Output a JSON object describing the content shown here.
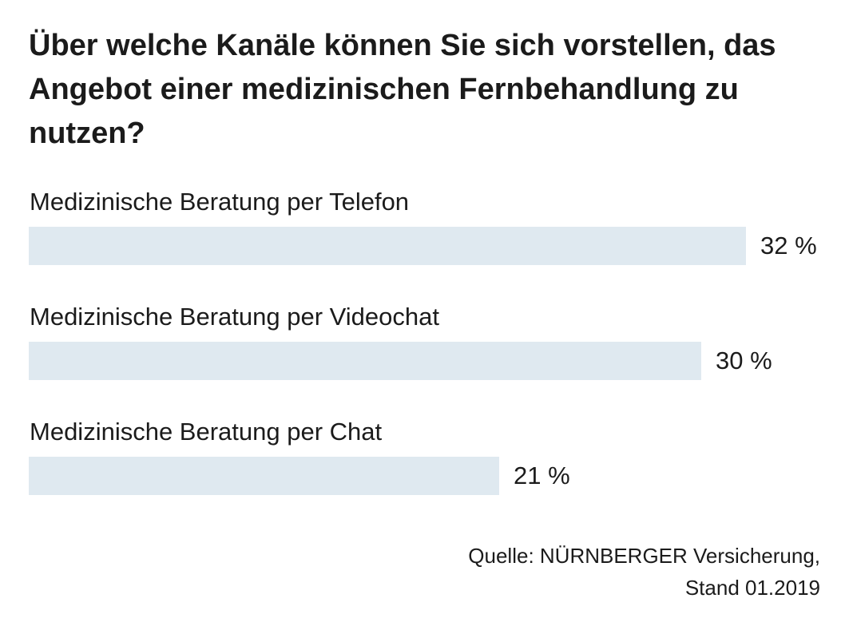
{
  "chart_data": {
    "type": "bar",
    "orientation": "horizontal",
    "title": "Über welche Kanäle können Sie sich vorstellen, das Angebot einer medizinischen Fernbehandlung zu nutzen?",
    "categories": [
      "Medizinische Beratung per Telefon",
      "Medizinische Beratung per Videochat",
      "Medizinische Beratung per Chat"
    ],
    "values": [
      32,
      30,
      21
    ],
    "value_labels": [
      "32 %",
      "30 %",
      "21 %"
    ],
    "unit": "%",
    "grid": false,
    "legend": "none",
    "bar_color": "#dfe9f0"
  },
  "source": {
    "line1": "Quelle: NÜRNBERGER Versicherung,",
    "line2": "Stand 01.2019"
  }
}
